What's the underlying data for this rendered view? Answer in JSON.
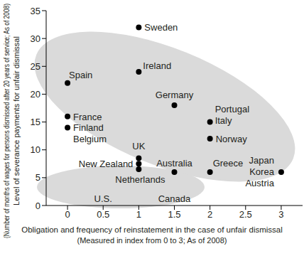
{
  "chart_data": {
    "type": "scatter",
    "color": "#000000",
    "grid": false,
    "xlabel": [
      "Obligation and frequency of reinstatement in the case of unfair dismissal",
      "(Measured in index from 0 to 3; As of 2008)"
    ],
    "ylabel": [
      "Level of severance payments for unfair dismissal",
      "(Number of months of wages for persons dismissed after 20 years of service; As of 2008)"
    ],
    "xlim": [
      -0.3,
      3.3
    ],
    "xticks": [
      0,
      0.5,
      1,
      1.5,
      2,
      2.5,
      3
    ],
    "ylim": [
      0,
      35
    ],
    "yticks": [
      0,
      5,
      10,
      15,
      20,
      25,
      30,
      35
    ],
    "points": [
      {
        "label": [
          "Sweden"
        ],
        "x": 1,
        "y": 32
      },
      {
        "label": [
          "Ireland"
        ],
        "x": 1,
        "y": 24
      },
      {
        "label": [
          "Spain"
        ],
        "x": 0,
        "y": 22
      },
      {
        "label": [
          "Germany"
        ],
        "x": 1.5,
        "y": 18
      },
      {
        "label": [
          "France"
        ],
        "x": 0,
        "y": 16
      },
      {
        "label": [
          "Finland",
          "Belgium"
        ],
        "x": 0,
        "y": 14
      },
      {
        "label": [
          "Portugal",
          "Italy"
        ],
        "x": 2,
        "y": 15
      },
      {
        "label": [
          "Norway"
        ],
        "x": 2,
        "y": 12
      },
      {
        "label": [
          "UK"
        ],
        "x": 1,
        "y": 8.5
      },
      {
        "label": [
          "New Zealand"
        ],
        "x": 1,
        "y": 7.5
      },
      {
        "label": [
          "Netherlands"
        ],
        "x": 1,
        "y": 6.5
      },
      {
        "label": [
          "Australia"
        ],
        "x": 1.5,
        "y": 6
      },
      {
        "label": [
          "Greece"
        ],
        "x": 2,
        "y": 6
      },
      {
        "label": [
          "Japan",
          "Korea",
          "Austria"
        ],
        "x": 3,
        "y": 6
      }
    ],
    "annotations": [
      {
        "text": "U.S.",
        "x": 0.5,
        "y": 1.2
      },
      {
        "text": "Canada",
        "x": 1.5,
        "y": 1.2
      }
    ]
  }
}
